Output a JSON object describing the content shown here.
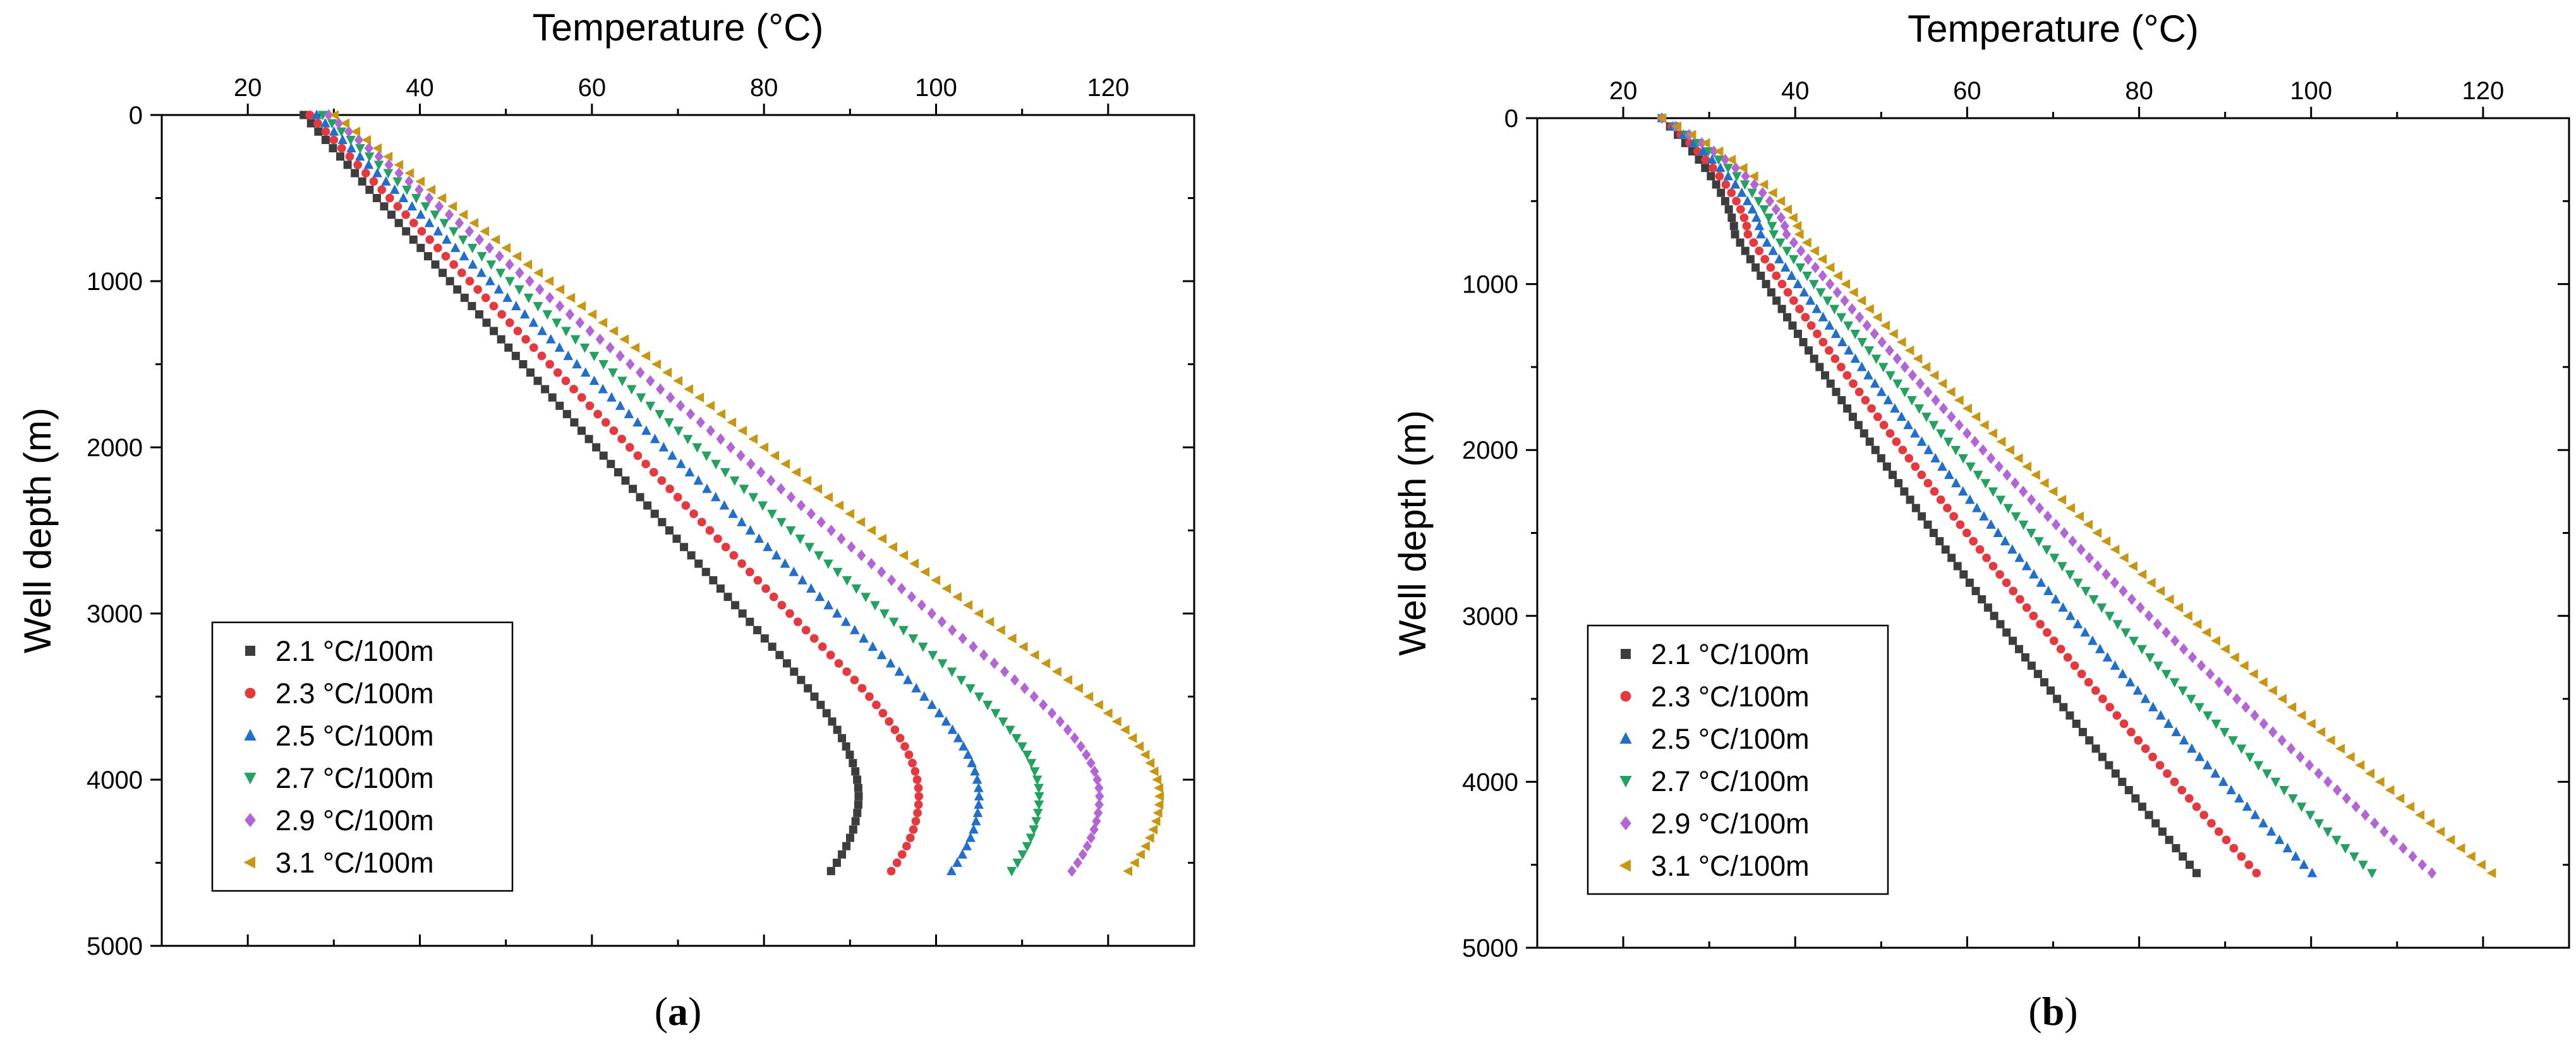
{
  "chart_data": [
    {
      "type": "scatter",
      "panel_label": "a",
      "xlabel": "Temperature (°C)",
      "ylabel": "Well depth (m)",
      "xlim": [
        10,
        130
      ],
      "ylim": [
        0,
        5000
      ],
      "y_inverted": true,
      "x_ticks": [
        20,
        40,
        60,
        80,
        100,
        120
      ],
      "y_ticks": [
        0,
        1000,
        2000,
        3000,
        4000,
        5000
      ],
      "legend_position": "bottom-left",
      "series": [
        {
          "name": "2.1 °C/100m",
          "marker": "square",
          "color": "#3d3d3d",
          "start": [
            26.5,
            0
          ],
          "linear_end": [
            77.5,
            3000
          ],
          "peak": [
            91,
            4100
          ],
          "end": [
            87.5,
            4570
          ]
        },
        {
          "name": "2.3 °C/100m",
          "marker": "circle",
          "color": "#e8383d",
          "start": [
            27.2,
            0
          ],
          "linear_end": [
            83.0,
            3000
          ],
          "peak": [
            98,
            4100
          ],
          "end": [
            94.5,
            4570
          ]
        },
        {
          "name": "2.5 °C/100m",
          "marker": "triangle-up",
          "color": "#1f6fd1",
          "start": [
            28.0,
            0
          ],
          "linear_end": [
            88.5,
            3000
          ],
          "peak": [
            105,
            4100
          ],
          "end": [
            101.5,
            4570
          ]
        },
        {
          "name": "2.7 °C/100m",
          "marker": "triangle-down",
          "color": "#20a35f",
          "start": [
            28.7,
            0
          ],
          "linear_end": [
            94.0,
            3000
          ],
          "peak": [
            112,
            4100
          ],
          "end": [
            108.5,
            4570
          ]
        },
        {
          "name": "2.9 °C/100m",
          "marker": "diamond",
          "color": "#b264d8",
          "start": [
            29.4,
            0
          ],
          "linear_end": [
            99.5,
            3000
          ],
          "peak": [
            119,
            4100
          ],
          "end": [
            115.5,
            4570
          ]
        },
        {
          "name": "3.1 °C/100m",
          "marker": "triangle-left",
          "color": "#c9960e",
          "start": [
            30.1,
            0
          ],
          "linear_end": [
            105.0,
            3000
          ],
          "peak": [
            126,
            4100
          ],
          "end": [
            122.0,
            4570
          ]
        }
      ]
    },
    {
      "type": "scatter",
      "panel_label": "b",
      "xlabel": "Temperature (°C)",
      "ylabel": "Well depth (m)",
      "xlim": [
        10,
        130
      ],
      "ylim": [
        0,
        5000
      ],
      "y_inverted": true,
      "x_ticks": [
        20,
        40,
        60,
        80,
        100,
        120
      ],
      "y_ticks": [
        0,
        1000,
        2000,
        3000,
        4000,
        5000
      ],
      "legend_position": "bottom-left",
      "series": [
        {
          "name": "2.1 °C/100m",
          "marker": "square",
          "color": "#3d3d3d",
          "start": [
            24.5,
            0
          ],
          "knee": [
            33,
            700
          ],
          "end": [
            87,
            4570
          ]
        },
        {
          "name": "2.3 °C/100m",
          "marker": "circle",
          "color": "#e8383d",
          "start": [
            24.5,
            0
          ],
          "knee": [
            34.5,
            700
          ],
          "end": [
            94,
            4570
          ]
        },
        {
          "name": "2.5 °C/100m",
          "marker": "triangle-up",
          "color": "#1f6fd1",
          "start": [
            24.5,
            0
          ],
          "knee": [
            36,
            700
          ],
          "end": [
            100.5,
            4570
          ]
        },
        {
          "name": "2.7 °C/100m",
          "marker": "triangle-down",
          "color": "#20a35f",
          "start": [
            24.5,
            0
          ],
          "knee": [
            37.5,
            700
          ],
          "end": [
            107.5,
            4570
          ]
        },
        {
          "name": "2.9 °C/100m",
          "marker": "diamond",
          "color": "#b264d8",
          "start": [
            24.5,
            0
          ],
          "knee": [
            39,
            700
          ],
          "end": [
            114.5,
            4570
          ]
        },
        {
          "name": "3.1 °C/100m",
          "marker": "triangle-left",
          "color": "#c9960e",
          "start": [
            24.5,
            0
          ],
          "knee": [
            40.5,
            700
          ],
          "end": [
            121.5,
            4570
          ]
        }
      ]
    }
  ]
}
